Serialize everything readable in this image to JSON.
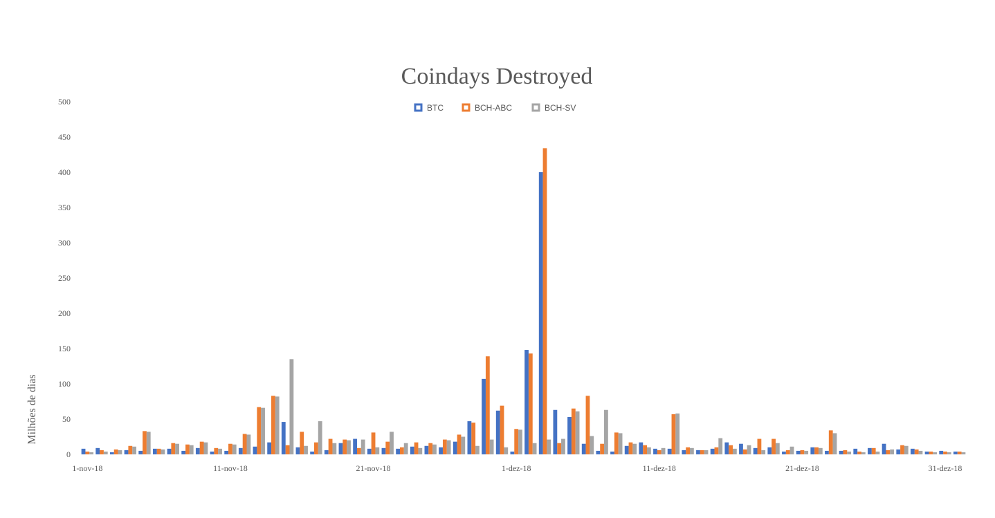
{
  "chart_data": {
    "type": "bar",
    "title": "Coindays Destroyed",
    "xlabel": "",
    "ylabel": "Milhões de dias",
    "ylim": [
      0,
      500
    ],
    "y_ticks": [
      0,
      50,
      100,
      150,
      200,
      250,
      300,
      350,
      400,
      450,
      500
    ],
    "x_tick_labels": [
      "1-nov-18",
      "11-nov-18",
      "21-nov-18",
      "1-dez-18",
      "11-dez-18",
      "21-dez-18",
      "31-dez-18"
    ],
    "x_tick_label_day_index": [
      0,
      10,
      20,
      30,
      40,
      50,
      60
    ],
    "grid": false,
    "legend_position": "top-center",
    "colors": {
      "BTC": "#4472C4",
      "BCH-ABC": "#ED7D31",
      "BCH-SV": "#A5A5A5",
      "text": "#595959"
    },
    "categories": [
      "1-nov-18",
      "2-nov-18",
      "3-nov-18",
      "4-nov-18",
      "5-nov-18",
      "6-nov-18",
      "7-nov-18",
      "8-nov-18",
      "9-nov-18",
      "10-nov-18",
      "11-nov-18",
      "12-nov-18",
      "13-nov-18",
      "14-nov-18",
      "15-nov-18",
      "16-nov-18",
      "17-nov-18",
      "18-nov-18",
      "19-nov-18",
      "20-nov-18",
      "21-nov-18",
      "22-nov-18",
      "23-nov-18",
      "24-nov-18",
      "25-nov-18",
      "26-nov-18",
      "27-nov-18",
      "28-nov-18",
      "29-nov-18",
      "30-nov-18",
      "1-dez-18",
      "2-dez-18",
      "3-dez-18",
      "4-dez-18",
      "5-dez-18",
      "6-dez-18",
      "7-dez-18",
      "8-dez-18",
      "9-dez-18",
      "10-dez-18",
      "11-dez-18",
      "12-dez-18",
      "13-dez-18",
      "14-dez-18",
      "15-dez-18",
      "16-dez-18",
      "17-dez-18",
      "18-dez-18",
      "19-dez-18",
      "20-dez-18",
      "21-dez-18",
      "22-dez-18",
      "23-dez-18",
      "24-dez-18",
      "25-dez-18",
      "26-dez-18",
      "27-dez-18",
      "28-dez-18",
      "29-dez-18",
      "30-dez-18",
      "31-dez-18",
      "1-jan-19"
    ],
    "series": [
      {
        "name": "BTC",
        "values": [
          8,
          9,
          3,
          6,
          5,
          8,
          8,
          5,
          9,
          4,
          5,
          9,
          11,
          17,
          46,
          10,
          4,
          6,
          16,
          22,
          8,
          9,
          8,
          11,
          12,
          10,
          18,
          47,
          107,
          62,
          4,
          148,
          400,
          63,
          53,
          15,
          5,
          4,
          12,
          17,
          8,
          8,
          6,
          6,
          8,
          17,
          15,
          9,
          10,
          4,
          5,
          10,
          5,
          5,
          8,
          9,
          15,
          7,
          8,
          4,
          5,
          4
        ]
      },
      {
        "name": "BCH-ABC",
        "values": [
          4,
          6,
          7,
          12,
          33,
          8,
          16,
          14,
          18,
          9,
          15,
          29,
          67,
          83,
          13,
          32,
          17,
          22,
          21,
          9,
          31,
          18,
          10,
          17,
          16,
          21,
          28,
          45,
          139,
          69,
          36,
          143,
          434,
          16,
          65,
          83,
          15,
          31,
          17,
          13,
          6,
          57,
          10,
          6,
          10,
          13,
          7,
          22,
          22,
          6,
          6,
          10,
          34,
          6,
          4,
          9,
          6,
          13,
          7,
          4,
          4,
          4
        ]
      },
      {
        "name": "BCH-SV",
        "values": [
          3,
          4,
          6,
          11,
          32,
          7,
          15,
          13,
          17,
          8,
          14,
          28,
          66,
          82,
          135,
          12,
          47,
          16,
          20,
          21,
          10,
          32,
          16,
          9,
          14,
          20,
          25,
          12,
          21,
          10,
          35,
          16,
          21,
          22,
          61,
          26,
          63,
          30,
          15,
          10,
          9,
          58,
          9,
          6,
          23,
          8,
          13,
          6,
          16,
          11,
          5,
          9,
          30,
          4,
          3,
          4,
          7,
          12,
          5,
          3,
          3,
          3
        ]
      }
    ]
  }
}
